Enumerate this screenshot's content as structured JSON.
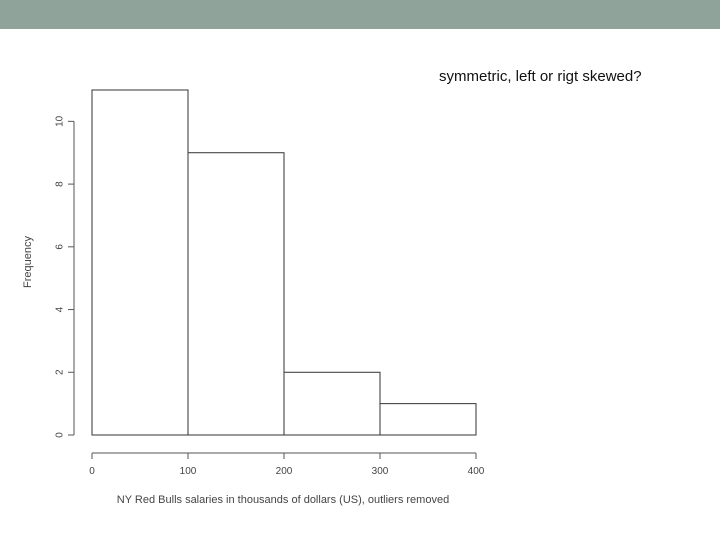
{
  "slide": {
    "question": "symmetric, left or rigt skewed?",
    "band_color": "#8fa39a"
  },
  "chart_data": {
    "type": "bar",
    "subtype": "histogram",
    "bins": [
      {
        "start": 0,
        "end": 100,
        "count": 11
      },
      {
        "start": 100,
        "end": 200,
        "count": 9
      },
      {
        "start": 200,
        "end": 300,
        "count": 2
      },
      {
        "start": 300,
        "end": 400,
        "count": 1
      }
    ],
    "xlabel": "NY Red Bulls salaries in thousands of dollars (US), outliers removed",
    "ylabel": "Frequency",
    "xlim": [
      0,
      400
    ],
    "ylim": [
      0,
      11
    ],
    "x_ticks": [
      0,
      100,
      200,
      300,
      400
    ],
    "y_ticks": [
      0,
      2,
      4,
      6,
      8,
      10
    ],
    "grid": false,
    "legend": "none",
    "bar_fill": "#ffffff",
    "bar_stroke": "#333333"
  }
}
